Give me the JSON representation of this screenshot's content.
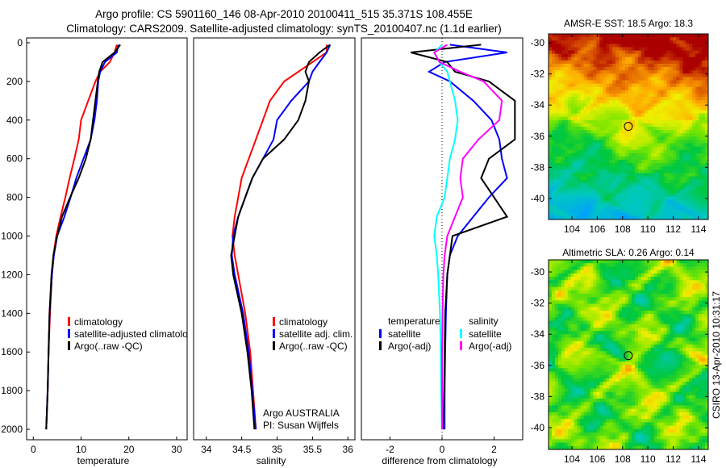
{
  "title": {
    "line1": "Argo profile: CS 5901160_146 08-Apr-2010 20100411_515 35.371S 108.455E",
    "line2": "Climatology: CARS2009. Satellite-adjusted climatology: synTS_20100407.nc (1.1d earlier)"
  },
  "side_label": "CSIRO 13-Apr-2010 10:31:17",
  "colors": {
    "red": "#ff0000",
    "blue": "#0000ff",
    "black": "#000000",
    "cyan": "#00ffff",
    "magenta": "#ff00ff"
  },
  "chart_data": [
    {
      "type": "line",
      "name": "temperature",
      "xlabel": "temperature",
      "xlim": [
        -1.4,
        32.2
      ],
      "ylim": [
        2054,
        -25
      ],
      "xticks": [
        "0",
        "10",
        "20",
        "30"
      ],
      "xtick_values": [
        0,
        10,
        20,
        30
      ],
      "yticks": [
        "0",
        "200",
        "400",
        "600",
        "800",
        "1000",
        "1200",
        "1400",
        "1600",
        "1800",
        "2000"
      ],
      "depth": [
        10,
        50,
        100,
        150,
        200,
        300,
        400,
        500,
        600,
        700,
        800,
        900,
        1000,
        1100,
        1200,
        1400,
        1600,
        1800,
        2000
      ],
      "series": [
        {
          "name": "climatology",
          "color": "#ff0000",
          "values": [
            17.5,
            17,
            16,
            14,
            13,
            11.5,
            10,
            9.5,
            8.6,
            7.6,
            6.7,
            5.7,
            4.8,
            4.2,
            3.9,
            3.5,
            3.2,
            3,
            2.7
          ]
        },
        {
          "name": "satellite-adjusted climatology",
          "color": "#0000ff",
          "values": [
            17.8,
            17.5,
            15,
            14,
            13.6,
            13.3,
            12.8,
            12,
            10.5,
            9,
            7.8,
            6.5,
            5,
            4.3,
            3.9,
            3.4,
            3.2,
            3,
            2.7
          ]
        },
        {
          "name": "Argo(..raw -QC)",
          "color": "#000000",
          "values": [
            18.2,
            17,
            14.5,
            13.8,
            13.5,
            13,
            12.5,
            12,
            11,
            9.5,
            7.7,
            6,
            5,
            4.2,
            3.8,
            3.4,
            3.2,
            3,
            2.7
          ]
        }
      ],
      "notes": []
    },
    {
      "type": "line",
      "name": "salinity",
      "xlabel": "salinity",
      "xlim": [
        33.82,
        36.1
      ],
      "ylim": [
        2054,
        -25
      ],
      "xticks": [
        "34",
        "34.5",
        "35",
        "35.5",
        "36"
      ],
      "xtick_values": [
        34,
        34.5,
        35,
        35.5,
        36
      ],
      "yticks": [],
      "depth": [
        10,
        50,
        100,
        150,
        200,
        300,
        400,
        500,
        600,
        700,
        800,
        900,
        1000,
        1100,
        1200,
        1400,
        1600,
        1800,
        2000
      ],
      "series": [
        {
          "name": "climatology",
          "color": "#ff0000",
          "values": [
            35.7,
            35.7,
            35.5,
            35.3,
            35.1,
            34.9,
            34.8,
            34.7,
            34.6,
            34.5,
            34.45,
            34.4,
            34.37,
            34.4,
            34.45,
            34.55,
            34.62,
            34.66,
            34.7
          ]
        },
        {
          "name": "satellite adj. clim.",
          "color": "#0000ff",
          "values": [
            35.75,
            35.7,
            35.6,
            35.5,
            35.45,
            35.2,
            35.0,
            34.95,
            34.8,
            34.65,
            34.55,
            34.45,
            34.38,
            34.36,
            34.4,
            34.52,
            34.6,
            34.65,
            34.7
          ]
        },
        {
          "name": "Argo(..raw -QC)",
          "color": "#000000",
          "values": [
            35.75,
            35.6,
            35.45,
            35.4,
            35.45,
            35.4,
            35.3,
            35.1,
            34.8,
            34.65,
            34.55,
            34.45,
            34.4,
            34.35,
            34.38,
            34.5,
            34.58,
            34.64,
            34.68
          ]
        }
      ],
      "notes": [
        "Argo AUSTRALIA",
        "PI: Susan Wijffels"
      ]
    },
    {
      "type": "line",
      "name": "difference",
      "xlabel": "difference from climatology",
      "xlim": [
        -3.1,
        3.1
      ],
      "ylim": [
        2054,
        -25
      ],
      "xticks": [
        "-2",
        "0",
        "2"
      ],
      "xtick_values": [
        -2,
        0,
        2
      ],
      "yticks": [],
      "depth": [
        10,
        50,
        100,
        150,
        200,
        300,
        400,
        500,
        600,
        700,
        800,
        900,
        1000,
        1100,
        1200,
        1400,
        1600,
        1800,
        2000
      ],
      "legend_headers": [
        "temperature",
        "salinity"
      ],
      "series": [
        {
          "name": "satellite",
          "group": "temperature",
          "color": "#0000ff",
          "values": [
            0.3,
            2.5,
            0.1,
            -0.5,
            0.3,
            1.2,
            1.9,
            2.2,
            2.3,
            2.5,
            1.8,
            1.2,
            0.6,
            0.3,
            0.2,
            0.15,
            0.12,
            0.1,
            0.1
          ]
        },
        {
          "name": "Argo(-adj)",
          "group": "temperature",
          "color": "#000000",
          "values": [
            1.5,
            -1.2,
            0.2,
            0.5,
            1.8,
            2.8,
            2.8,
            2.8,
            1.8,
            1.5,
            2,
            2.5,
            0.4,
            0.3,
            0.2,
            0.12,
            0.1,
            0.08,
            0.05
          ]
        },
        {
          "name": "satellite",
          "group": "salinity",
          "color": "#00ffff",
          "values": [
            0.0,
            -0.3,
            -0.1,
            0.2,
            0.3,
            0.5,
            0.6,
            0.5,
            0.3,
            0.2,
            0.1,
            -0.2,
            -0.3,
            -0.2,
            -0.15,
            -0.08,
            -0.05,
            -0.03,
            0
          ]
        },
        {
          "name": "Argo(-adj)",
          "group": "salinity",
          "color": "#ff00ff",
          "values": [
            0.2,
            -0.3,
            -0.1,
            0.7,
            1.6,
            2.3,
            2.2,
            1.4,
            0.8,
            0.7,
            0.8,
            0.5,
            0.2,
            0.1,
            0.05,
            0.02,
            0,
            0,
            0
          ]
        }
      ],
      "notes": []
    },
    {
      "type": "heatmap",
      "name": "sst-map",
      "title": "AMSR-E SST: 18.5 Argo: 18.3",
      "xlim": [
        102.15,
        114.77
      ],
      "ylim": [
        -41.35,
        -29.43
      ],
      "xticks": [
        "104",
        "106",
        "108",
        "110",
        "112",
        "114"
      ],
      "xtick_values": [
        104,
        106,
        108,
        110,
        112,
        114
      ],
      "yticks": [
        "-30",
        "-32",
        "-34",
        "-36",
        "-38",
        "-40"
      ],
      "ytick_values": [
        -30,
        -32,
        -34,
        -36,
        -38,
        -40
      ],
      "marker": {
        "lon": 108.455,
        "lat": -35.371
      }
    },
    {
      "type": "heatmap",
      "name": "sla-map",
      "title": "Altimetric SLA: 0.26 Argo: 0.14",
      "xlim": [
        102.15,
        114.77
      ],
      "ylim": [
        -41.4,
        -29.22
      ],
      "xticks": [
        "104",
        "106",
        "108",
        "110",
        "112",
        "114"
      ],
      "xtick_values": [
        104,
        106,
        108,
        110,
        112,
        114
      ],
      "yticks": [
        "-30",
        "-32",
        "-34",
        "-36",
        "-38",
        "-40"
      ],
      "ytick_values": [
        -30,
        -32,
        -34,
        -36,
        -38,
        -40
      ],
      "marker": {
        "lon": 108.455,
        "lat": -35.371
      }
    }
  ]
}
